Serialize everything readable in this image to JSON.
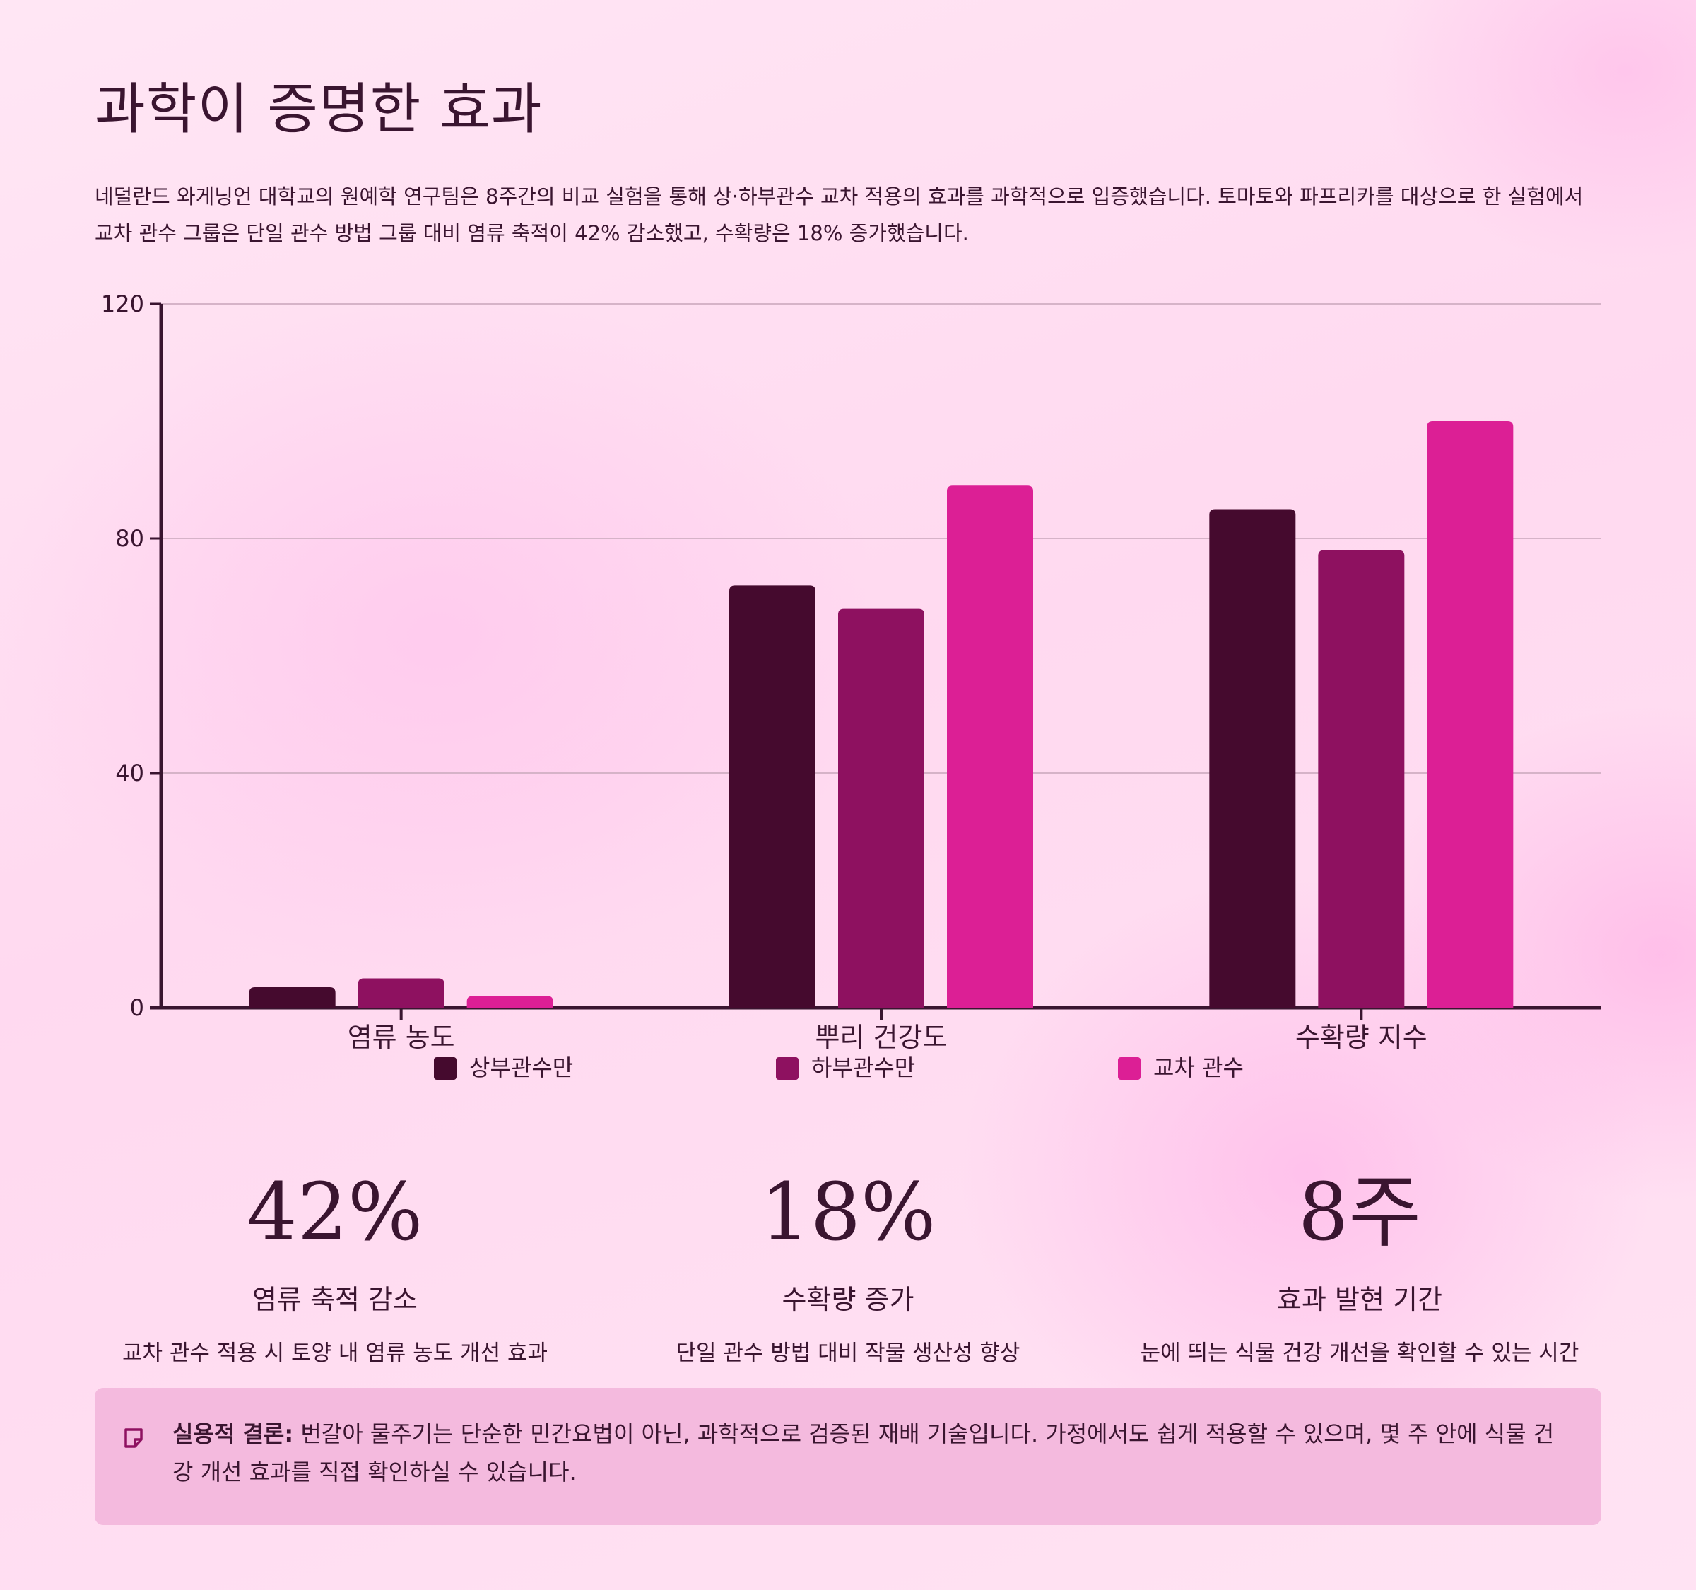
{
  "title": "과학이 증명한 효과",
  "intro": "네덜란드 와게닝언 대학교의 원예학 연구팀은 8주간의 비교 실험을 통해 상·하부관수 교차 적용의 효과를 과학적으로 입증했습니다. 토마토와 파프리카를 대상으로 한 실험에서 교차 관수 그룹은 단일 관수 방법 그룹 대비 염류 축적이 42% 감소했고, 수확량은 18% 증가했습니다.",
  "chart_data": {
    "type": "bar",
    "categories": [
      "염류 농도",
      "뿌리 건강도",
      "수확량 지수"
    ],
    "series": [
      {
        "name": "상부관수만",
        "values": [
          3.5,
          72,
          85
        ],
        "color": "#450a2e"
      },
      {
        "name": "하부관수만",
        "values": [
          5,
          68,
          78
        ],
        "color": "#8e1160"
      },
      {
        "name": "교차 관수",
        "values": [
          2,
          89,
          100
        ],
        "color": "#dc1f95"
      }
    ],
    "yticks": [
      0,
      40,
      80,
      120
    ],
    "ylim": [
      0,
      120
    ],
    "grid": true,
    "legend": "bottom",
    "xlabel": "",
    "ylabel": ""
  },
  "stats": [
    {
      "value": "42%",
      "label": "염류 축적 감소",
      "desc": "교차 관수 적용 시 토양 내 염류 농도 개선 효과"
    },
    {
      "value": "18%",
      "label": "수확량 증가",
      "desc": "단일 관수 방법 대비 작물 생산성 향상"
    },
    {
      "value": "8주",
      "label": "효과 발현 기간",
      "desc": "눈에 띄는 식물 건강 개선을 확인할 수 있는 시간"
    }
  ],
  "note": {
    "icon": "note-icon",
    "strong": "실용적 결론:",
    "text": " 번갈아 물주기는 단순한 민간요법이 아닌, 과학적으로 검증된 재배 기술입니다. 가정에서도 쉽게 적용할 수 있으며, 몇 주 안에 식물 건강 개선 효과를 직접 확인하실 수 있습니다."
  }
}
